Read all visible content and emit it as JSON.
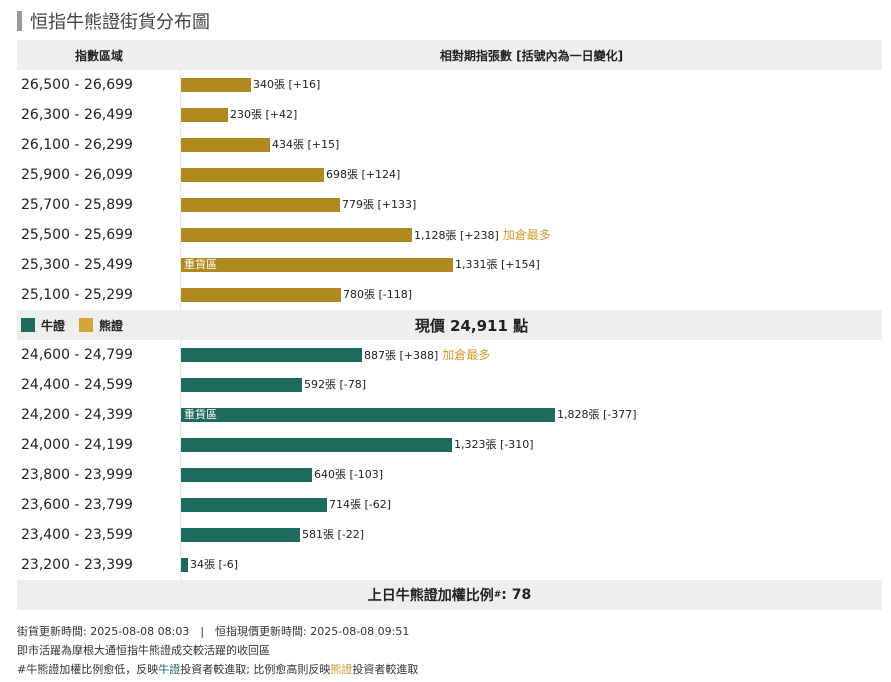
{
  "title": "恒指牛熊證街貨分布圖",
  "header": {
    "col1": "指數區域",
    "col2": "相對期指張數 [括號內為一日變化]"
  },
  "legend": {
    "bull": "牛證",
    "bear": "熊證"
  },
  "colors": {
    "bull": "#1e6b5e",
    "bear": "#b08a1e",
    "note": "#d79a2b"
  },
  "current_price_text": "現價 24,911 點",
  "ratio": {
    "label": "上日牛熊證加權比例",
    "sup": "#",
    "value": ": 78"
  },
  "footer": {
    "update_line": "街貨更新時間: 2025-08-08 08:03　|　恒指現價更新時間: 2025-08-08 09:51",
    "line2": "即市活躍為摩根大通恒指牛熊證成交較活躍的收回區",
    "line3_pre": "#牛熊證加權比例愈低，反映",
    "line3_bull": "牛證",
    "line3_mid": "投資者較進取; 比例愈高則反映",
    "line3_bear": "熊證",
    "line3_post": "投資者較進取"
  },
  "chart_data": {
    "type": "bar",
    "title": "恒指牛熊證街貨分布圖",
    "xlabel": "相對期指張數 [括號內為一日變化]",
    "ylabel": "指數區域",
    "bear": [
      {
        "range": "26,500 - 26,699",
        "value": 340,
        "label": "340張 [+16]",
        "note": "",
        "inner": ""
      },
      {
        "range": "26,300 - 26,499",
        "value": 230,
        "label": "230張 [+42]",
        "note": "",
        "inner": ""
      },
      {
        "range": "26,100 - 26,299",
        "value": 434,
        "label": "434張 [+15]",
        "note": "",
        "inner": ""
      },
      {
        "range": "25,900 - 26,099",
        "value": 698,
        "label": "698張 [+124]",
        "note": "",
        "inner": ""
      },
      {
        "range": "25,700 - 25,899",
        "value": 779,
        "label": "779張 [+133]",
        "note": "",
        "inner": ""
      },
      {
        "range": "25,500 - 25,699",
        "value": 1128,
        "label": "1,128張 [+238]",
        "note": "加倉最多",
        "inner": ""
      },
      {
        "range": "25,300 - 25,499",
        "value": 1331,
        "label": "1,331張 [+154]",
        "note": "",
        "inner": "重貨區"
      },
      {
        "range": "25,100 - 25,299",
        "value": 780,
        "label": "780張 [-118]",
        "note": "",
        "inner": ""
      }
    ],
    "bull": [
      {
        "range": "24,600 - 24,799",
        "value": 887,
        "label": "887張 [+388]",
        "note": "加倉最多",
        "inner": ""
      },
      {
        "range": "24,400 - 24,599",
        "value": 592,
        "label": "592張 [-78]",
        "note": "",
        "inner": ""
      },
      {
        "range": "24,200 - 24,399",
        "value": 1828,
        "label": "1,828張 [-377]",
        "note": "",
        "inner": "重貨區"
      },
      {
        "range": "24,000 - 24,199",
        "value": 1323,
        "label": "1,323張 [-310]",
        "note": "",
        "inner": ""
      },
      {
        "range": "23,800 - 23,999",
        "value": 640,
        "label": "640張 [-103]",
        "note": "",
        "inner": ""
      },
      {
        "range": "23,600 - 23,799",
        "value": 714,
        "label": "714張 [-62]",
        "note": "",
        "inner": ""
      },
      {
        "range": "23,400 - 23,599",
        "value": 581,
        "label": "581張 [-22]",
        "note": "",
        "inner": ""
      },
      {
        "range": "23,200 - 23,399",
        "value": 34,
        "label": "34張 [-6]",
        "note": "",
        "inner": ""
      }
    ],
    "current_price": 24911,
    "ratio": 78,
    "grid": false,
    "legend_position": "middle-left"
  }
}
